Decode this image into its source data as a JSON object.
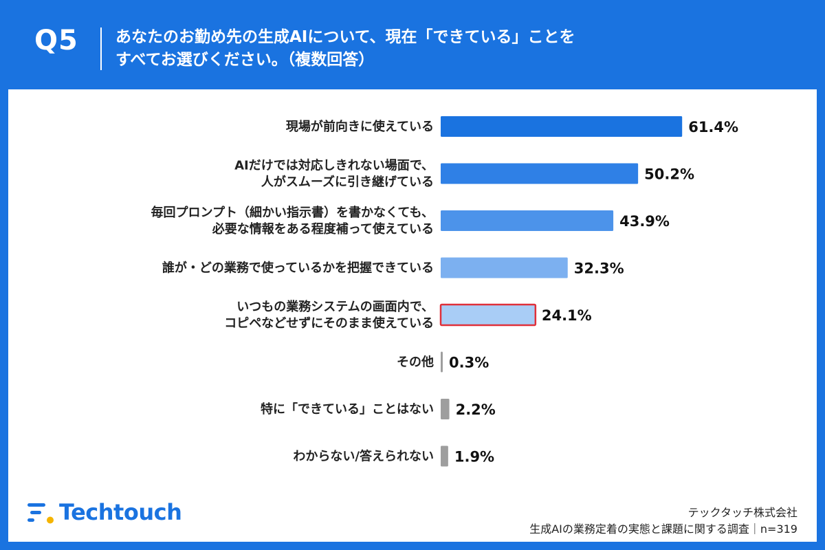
{
  "header": {
    "q_label": "Q5",
    "title_line1": "あなたのお勤め先の生成AIについて、現在「できている」ことを",
    "title_line2": "すべてお選びください。（複数回答）"
  },
  "brand": {
    "logo_text": "Techtouch",
    "logo_icon": "techtouch-logo-icon"
  },
  "credit": {
    "company": "テックタッチ株式会社",
    "survey": "生成AIの業務定着の実態と課題に関する調査｜n=319"
  },
  "colors": {
    "header_bg": "#1a73e0",
    "highlight_border": "#e0303a",
    "gray_bar": "#9e9e9e"
  },
  "chart_data": {
    "type": "bar",
    "orientation": "horizontal",
    "unit": "%",
    "xlim": [
      0,
      100
    ],
    "grid": false,
    "categories": [
      [
        "現場が前向きに使えている"
      ],
      [
        "AIだけでは対応しきれない場面で、",
        "人がスムーズに引き継げている"
      ],
      [
        "毎回プロンプト（細かい指示書）を書かなくても、",
        "必要な情報をある程度補って使えている"
      ],
      [
        "誰が・どの業務で使っているかを把握できている"
      ],
      [
        "いつもの業務システムの画面内で、",
        "コピペなどせずにそのまま使えている"
      ],
      [
        "その他"
      ],
      [
        "特に「できている」ことはない"
      ],
      [
        "わからない/答えられない"
      ]
    ],
    "values": [
      61.4,
      50.2,
      43.9,
      32.3,
      24.1,
      0.3,
      2.2,
      1.9
    ],
    "value_labels": [
      "61.4%",
      "50.2%",
      "43.9%",
      "32.3%",
      "24.1%",
      "0.3%",
      "2.2%",
      "1.9%"
    ],
    "bar_colors": [
      "#1a73e0",
      "#2f80e6",
      "#4c93ea",
      "#7cb0f0",
      "#a9cdf6",
      "#9e9e9e",
      "#9e9e9e",
      "#9e9e9e"
    ],
    "highlight_index": 4
  }
}
